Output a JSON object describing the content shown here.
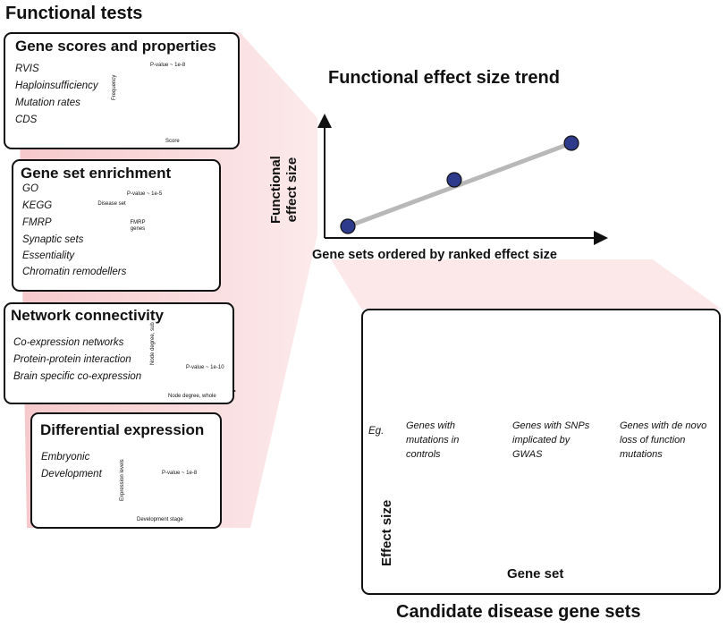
{
  "title": "Functional tests",
  "panels": {
    "scores": {
      "title": "Gene scores and properties",
      "items": [
        "RVIS",
        "Haploinsufficiency",
        "Mutation rates",
        "CDS"
      ],
      "pvalue": "P-value ~ 1e-8",
      "ylabel": "Frequency",
      "xlabel": "Score"
    },
    "enrichment": {
      "title": "Gene set enrichment",
      "items": [
        "GO",
        "KEGG",
        "FMRP",
        "Synaptic sets",
        "Essentiality",
        "Chromatin remodellers"
      ],
      "pvalue": "P-value ~ 1e-5",
      "circle1": "Disease set",
      "circle2": "FMRP genes"
    },
    "network": {
      "title": "Network connectivity",
      "items": [
        "Co-expression networks",
        "Protein-protein interaction",
        "Brain specific co-expression"
      ],
      "pvalue": "P-value ~ 1e-10",
      "ylabel": "Node degree, sub",
      "xlabel": "Node degree, whole"
    },
    "differential": {
      "title": "Differential expression",
      "items": [
        "Embryonic",
        "Development"
      ],
      "pvalue": "P-value ~ 1e-8",
      "ylabel": "Expression levels",
      "xlabel": "Development stage"
    }
  },
  "trend": {
    "title": "Functional effect size trend",
    "ylabel_line1": "Functional",
    "ylabel_line2": "effect size",
    "xlabel": "Gene sets ordered by ranked effect  size"
  },
  "candidates": {
    "caption": "Candidate disease gene sets",
    "eg": "Eg.",
    "groups": [
      {
        "lines": [
          "Genes with",
          "mutations in",
          "controls"
        ]
      },
      {
        "lines": [
          "Genes with SNPs",
          "implicated by",
          "GWAS"
        ]
      },
      {
        "lines": [
          "Genes with de novo",
          "loss of function",
          "mutations"
        ]
      }
    ],
    "bar_ylabel": "Effect size",
    "bar_xlabel": "Gene set"
  },
  "colors": {
    "orange": "#f4a233",
    "navy": "#2e3a8c",
    "light_orange": "#f6c08a",
    "purple": "#cea5cf",
    "salmon": "#f08a6b",
    "gray": "#9a9a9a",
    "funnel": "#f3c7c9"
  }
}
